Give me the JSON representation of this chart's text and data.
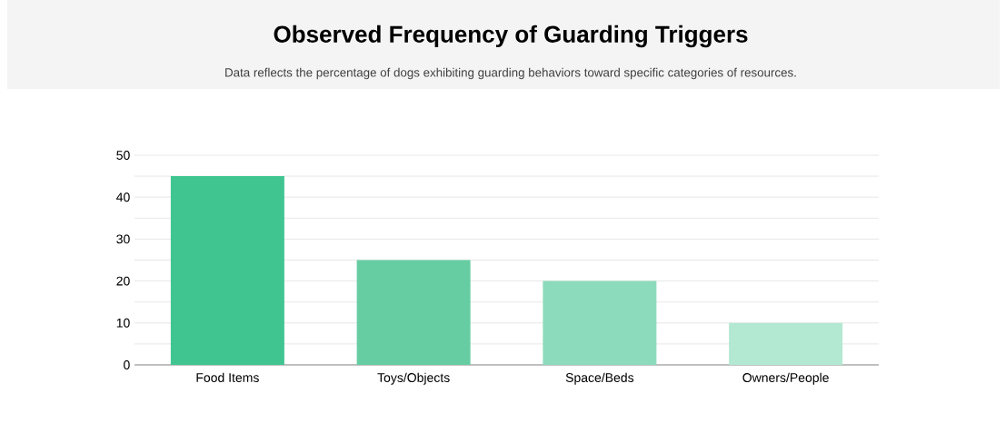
{
  "chart_data": {
    "type": "bar",
    "title": "Observed Frequency of Guarding Triggers",
    "subtitle": "Data reflects the percentage of dogs exhibiting guarding behaviors toward specific categories of resources.",
    "categories": [
      "Food Items",
      "Toys/Objects",
      "Space/Beds",
      "Owners/People"
    ],
    "values": [
      45,
      25,
      20,
      10
    ],
    "colors": [
      "#40c591",
      "#66cda3",
      "#8cdbbc",
      "#b3e8d3"
    ],
    "ylim": [
      0,
      50
    ],
    "yticks": [
      0,
      {
        "value": 5,
        "label": null
      },
      10,
      {
        "value": 15,
        "label": null
      },
      20,
      {
        "value": 25,
        "label": null
      },
      30,
      {
        "value": 35,
        "label": null
      },
      40,
      {
        "value": 45,
        "label": null
      },
      50
    ],
    "grid": "y"
  }
}
